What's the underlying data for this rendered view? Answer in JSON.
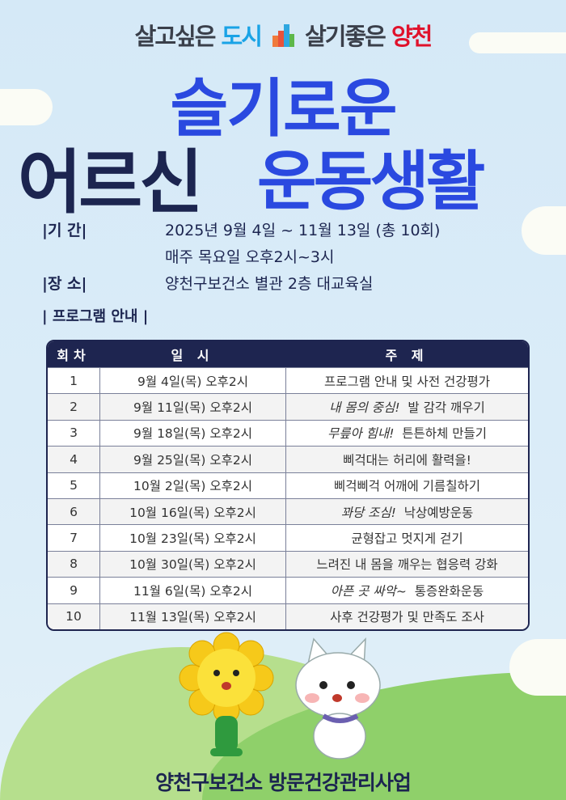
{
  "header": {
    "slogan_part1": "살고싶은",
    "slogan_city": "도시",
    "slogan_part2": "살기좋은",
    "slogan_name": "양천"
  },
  "title": {
    "line1": "슬기로운",
    "line2a": "어르신",
    "line2b": "운동생활"
  },
  "info": {
    "period_label": "|기      간|",
    "period_value": "2025년 9월 4일 ~ 11월 13일 (총 10회)",
    "period_value2": "매주 목요일 오후2시~3시",
    "place_label": "|장      소|",
    "place_value": "양천구보건소 별관 2층 대교육실"
  },
  "program_section": "| 프로그램 안내 |",
  "table": {
    "headers": [
      "회차",
      "일 시",
      "주 제"
    ],
    "rows": [
      {
        "no": "1",
        "date": "9월 4일(목) 오후2시",
        "em": "",
        "topic": "프로그램 안내 및 사전 건강평가"
      },
      {
        "no": "2",
        "date": "9월 11일(목) 오후2시",
        "em": "내 몸의 중심!",
        "topic": "발 감각 깨우기"
      },
      {
        "no": "3",
        "date": "9월 18일(목) 오후2시",
        "em": "무릎아 힘내!",
        "topic": "튼튼하체 만들기"
      },
      {
        "no": "4",
        "date": "9월 25일(목) 오후2시",
        "em": "",
        "topic": "삐걱대는 허리에 활력을!"
      },
      {
        "no": "5",
        "date": "10월 2일(목) 오후2시",
        "em": "",
        "topic": "삐걱삐걱 어깨에 기름칠하기"
      },
      {
        "no": "6",
        "date": "10월 16일(목) 오후2시",
        "em": "꽈당 조심!",
        "topic": "낙상예방운동"
      },
      {
        "no": "7",
        "date": "10월 23일(목) 오후2시",
        "em": "",
        "topic": "균형잡고 멋지게 걷기"
      },
      {
        "no": "8",
        "date": "10월 30일(목) 오후2시",
        "em": "",
        "topic": "느려진 내 몸을 깨우는 협응력 강화"
      },
      {
        "no": "9",
        "date": "11월 6일(목) 오후2시",
        "em": "아픈 곳 싸악~",
        "topic": "통증완화운동"
      },
      {
        "no": "10",
        "date": "11월 13일(목) 오후2시",
        "em": "",
        "topic": "사후 건강평가 및 만족도 조사"
      }
    ]
  },
  "footer": "양천구보건소 방문건강관리사업",
  "colors": {
    "blue": "#2a49e0",
    "navy": "#1c2550",
    "red": "#e0122c",
    "sky": "#d5e9f7",
    "green": "#8fd06a"
  }
}
